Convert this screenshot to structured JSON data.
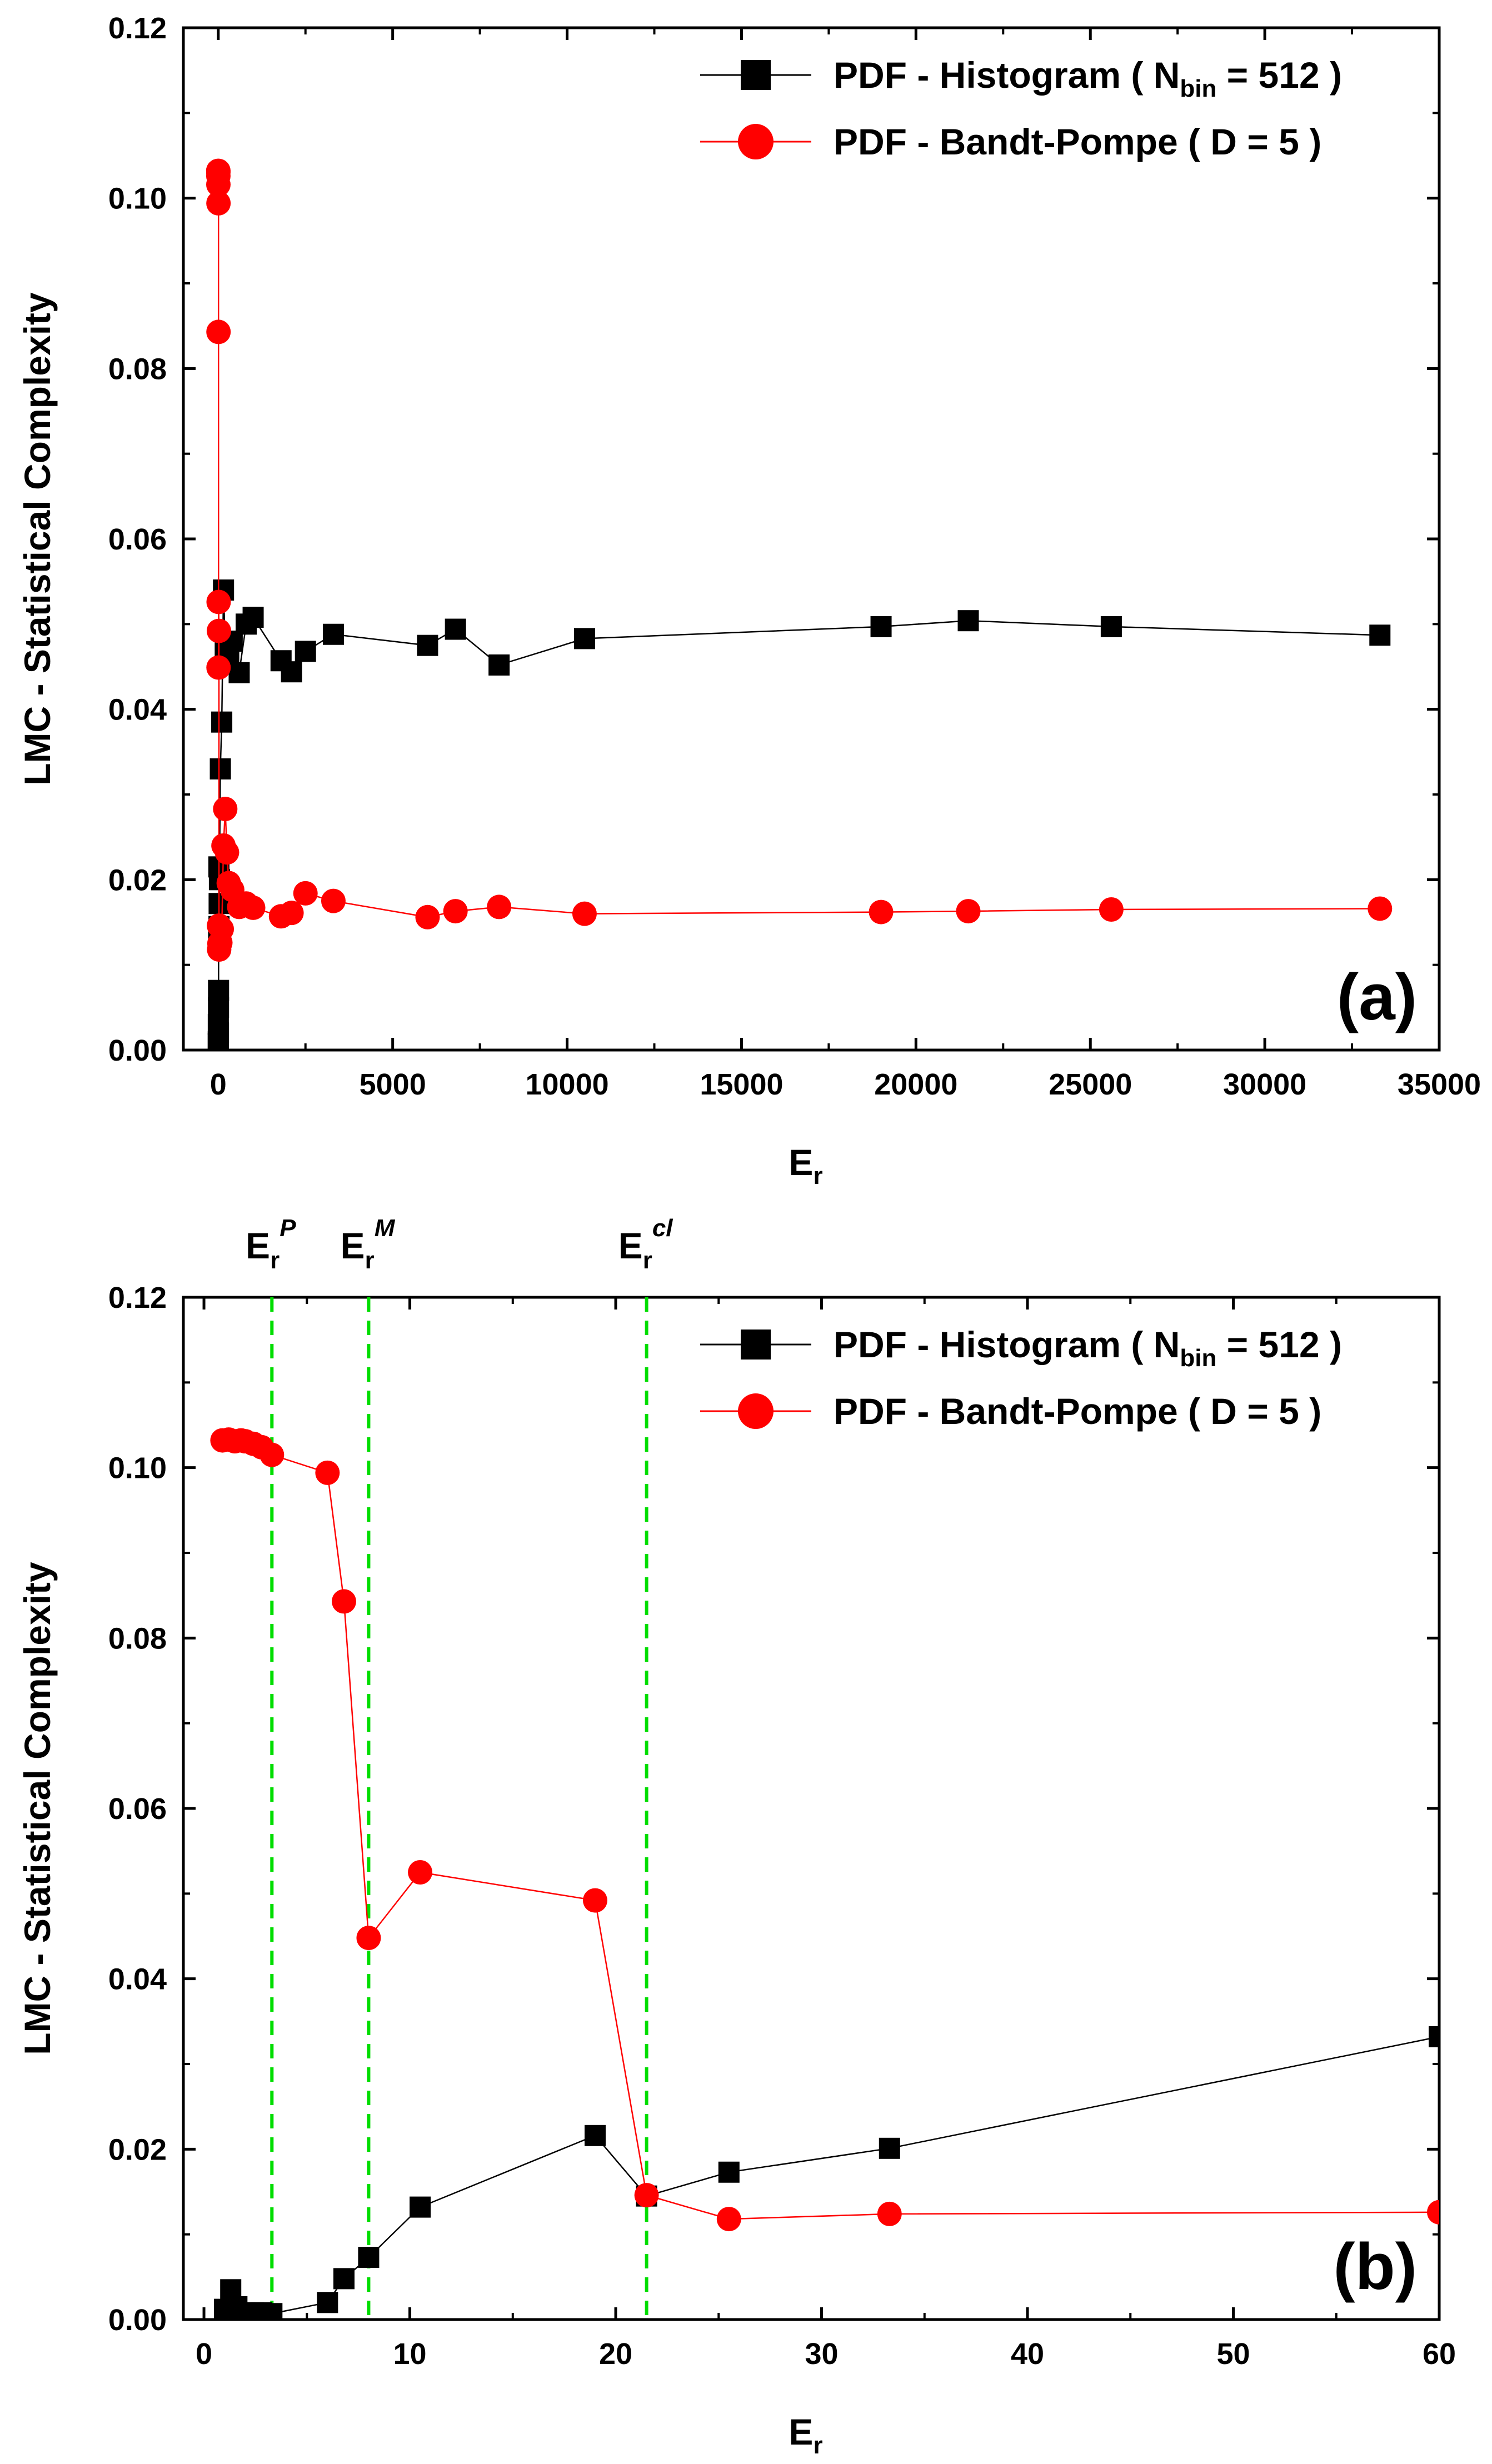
{
  "chart_data": [
    {
      "type": "line",
      "panel_label": "(a)",
      "xlabel": "E",
      "xlabel_sub": "r",
      "ylabel": "LMC - Statistical  Complexity",
      "xlim": [
        -1000,
        35000
      ],
      "ylim": [
        0,
        0.12
      ],
      "x_ticks": [
        "0",
        "5000",
        "10000",
        "15000",
        "20000",
        "25000",
        "30000",
        "35000"
      ],
      "y_ticks": [
        "0.00",
        "0.02",
        "0.04",
        "0.06",
        "0.08",
        "0.10",
        "0.12"
      ],
      "legend_position": "top-right",
      "series": [
        {
          "name": "PDF - Histogram ( N",
          "name_sub": "bin",
          "name_suffix": " = 512 )",
          "marker": "square",
          "color": "#000000",
          "x": [
            1,
            1.4,
            1.8,
            2.2,
            2.6,
            3.3,
            6,
            6.8,
            8,
            10.5,
            19,
            21.5,
            25.5,
            33.3,
            60,
            100,
            150,
            200,
            300,
            400,
            600,
            800,
            1000,
            1800,
            2100,
            2500,
            3300,
            6000,
            6800,
            8050,
            10500,
            19000,
            21500,
            25600,
            33300
          ],
          "y": [
            0.001,
            0.003,
            0.0008,
            0.0008,
            0.0008,
            0.0005,
            0.002,
            0.005,
            0.007,
            0.013,
            0.0215,
            0.0145,
            0.0172,
            0.02,
            0.033,
            0.0385,
            0.054,
            0.0475,
            0.046,
            0.048,
            0.0443,
            0.05,
            0.0508,
            0.0457,
            0.0444,
            0.0468,
            0.0488,
            0.0475,
            0.0494,
            0.0452,
            0.0483,
            0.0497,
            0.0504,
            0.0497,
            0.0487
          ]
        },
        {
          "name": "PDF - Bandt-Pompe ( D = 5 )",
          "marker": "circle",
          "color": "#ff0000",
          "x": [
            1,
            1.5,
            2,
            2.5,
            3.3,
            6,
            6.8,
            8,
            10.5,
            19,
            21.5,
            25.5,
            33.3,
            60,
            100,
            150,
            200,
            250,
            300,
            400,
            600,
            800,
            1000,
            1800,
            2100,
            2500,
            3300,
            6000,
            6800,
            8050,
            10500,
            19000,
            21500,
            25600,
            33300
          ],
          "y": [
            0.1032,
            0.1032,
            0.103,
            0.1026,
            0.1016,
            0.0994,
            0.0843,
            0.0449,
            0.0526,
            0.0492,
            0.0146,
            0.0118,
            0.0125,
            0.0126,
            0.0142,
            0.024,
            0.0283,
            0.0232,
            0.0196,
            0.0188,
            0.0168,
            0.0172,
            0.0167,
            0.0157,
            0.0161,
            0.0184,
            0.0175,
            0.0156,
            0.0163,
            0.0168,
            0.016,
            0.0162,
            0.0163,
            0.0165,
            0.0166
          ]
        }
      ]
    },
    {
      "type": "line",
      "panel_label": "(b)",
      "xlabel": "E",
      "xlabel_sub": "r",
      "ylabel": "LMC - Statistical  Complexity",
      "xlim": [
        -1,
        60
      ],
      "ylim": [
        0,
        0.12
      ],
      "x_ticks": [
        "0",
        "10",
        "20",
        "30",
        "40",
        "50",
        "60"
      ],
      "y_ticks": [
        "0.00",
        "0.02",
        "0.04",
        "0.06",
        "0.08",
        "0.10",
        "0.12"
      ],
      "legend_position": "top-right",
      "vertical_lines": [
        {
          "x": 3.3,
          "label": "E",
          "label_sub": "r",
          "label_sup": "P",
          "color": "#00dd00"
        },
        {
          "x": 8.0,
          "label": "E",
          "label_sub": "r",
          "label_sup": "M",
          "color": "#00dd00"
        },
        {
          "x": 21.5,
          "label": "E",
          "label_sub": "r",
          "label_sup": "cl",
          "color": "#00dd00"
        }
      ],
      "series": [
        {
          "name": "PDF - Histogram ( N",
          "name_sub": "bin",
          "name_suffix": " = 512 )",
          "marker": "square",
          "color": "#000000",
          "x": [
            1,
            1.3,
            1.6,
            2.0,
            2.4,
            2.8,
            3.3,
            6,
            6.8,
            8,
            10.5,
            19,
            21.5,
            25.5,
            33.3,
            60
          ],
          "y": [
            0.0012,
            0.0035,
            0.0015,
            0.0008,
            0.0008,
            0.0008,
            0.0007,
            0.002,
            0.0048,
            0.0073,
            0.0132,
            0.0216,
            0.0145,
            0.0173,
            0.0201,
            0.0332
          ]
        },
        {
          "name": "PDF - Bandt-Pompe ( D = 5 )",
          "marker": "circle",
          "color": "#ff0000",
          "x": [
            0.9,
            1.2,
            1.5,
            1.8,
            2.0,
            2.4,
            2.8,
            3.3,
            6,
            6.8,
            8,
            10.5,
            19,
            21.5,
            25.5,
            33.3,
            60
          ],
          "y": [
            0.1032,
            0.1033,
            0.1031,
            0.1032,
            0.1031,
            0.1028,
            0.1024,
            0.1015,
            0.0994,
            0.0843,
            0.0448,
            0.0525,
            0.0492,
            0.0146,
            0.0118,
            0.0124,
            0.0126
          ]
        }
      ]
    }
  ]
}
